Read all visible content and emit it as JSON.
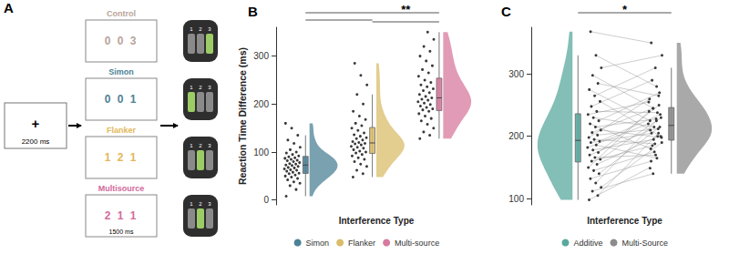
{
  "diagram": {
    "label": "A",
    "fixation": {
      "symbol": "+",
      "duration": "2200 ms"
    },
    "trials": [
      {
        "name": "Control",
        "stimulus": "0 0 3",
        "color": "#b8a399"
      },
      {
        "name": "Simon",
        "stimulus": "0 0 1",
        "color": "#4d8196"
      },
      {
        "name": "Flanker",
        "stimulus": "1 2 1",
        "color": "#e3b75a"
      },
      {
        "name": "Multisource",
        "stimulus": "2 1 1",
        "color": "#d26b9c"
      }
    ],
    "trial_duration": "1500 ms",
    "keypad": [
      "1",
      "2",
      "3"
    ]
  },
  "chart_data": [
    {
      "type": "raincloud",
      "title": "B",
      "ylabel": "Reaction Time Difference (ms)",
      "xlabel": "Interference Type",
      "ylim": [
        -10,
        360
      ],
      "yticks": [
        0,
        100,
        200,
        300
      ],
      "legend": "bottom",
      "tick_labels": "y",
      "annotations": [
        "**"
      ],
      "series": [
        {
          "name": "Simon",
          "color": "#4d8196",
          "values": [
            8,
            22,
            30,
            35,
            38,
            42,
            45,
            48,
            50,
            52,
            55,
            56,
            58,
            60,
            62,
            63,
            65,
            67,
            68,
            70,
            72,
            73,
            75,
            76,
            78,
            80,
            82,
            83,
            85,
            87,
            88,
            90,
            92,
            95,
            98,
            100,
            105,
            110,
            118,
            125,
            135,
            150,
            160
          ]
        },
        {
          "name": "Flanker",
          "color": "#d9bc6a",
          "values": [
            48,
            55,
            62,
            70,
            75,
            80,
            85,
            88,
            92,
            95,
            98,
            100,
            102,
            105,
            108,
            110,
            112,
            115,
            117,
            118,
            120,
            122,
            125,
            128,
            130,
            133,
            136,
            140,
            145,
            150,
            155,
            160,
            168,
            175,
            185,
            200,
            220,
            240,
            260,
            285
          ]
        },
        {
          "name": "Multi-source",
          "color": "#d8799f",
          "values": [
            128,
            135,
            142,
            150,
            158,
            165,
            170,
            175,
            180,
            185,
            188,
            190,
            193,
            196,
            199,
            202,
            205,
            208,
            210,
            213,
            216,
            220,
            224,
            228,
            232,
            236,
            240,
            245,
            250,
            258,
            265,
            272,
            280,
            290,
            300,
            310,
            320,
            335,
            350
          ]
        }
      ]
    },
    {
      "type": "paired_raincloud",
      "title": "C",
      "xlabel": "Interference Type",
      "ylim": [
        90,
        375
      ],
      "yticks": [
        100,
        200,
        300
      ],
      "legend": "bottom",
      "tick_labels": "y",
      "annotations": [
        "*"
      ],
      "series": [
        {
          "name": "Additive",
          "color": "#5aa99d",
          "values": [
            98,
            105,
            112,
            118,
            125,
            132,
            140,
            145,
            150,
            155,
            160,
            163,
            166,
            170,
            174,
            178,
            182,
            186,
            190,
            192,
            195,
            198,
            202,
            206,
            210,
            215,
            220,
            225,
            230,
            235,
            240,
            248,
            256,
            265,
            275,
            285,
            298,
            310,
            330,
            368
          ]
        },
        {
          "name": "Multi-Source",
          "color": "#8c8c8c",
          "values": [
            150,
            205,
            140,
            190,
            225,
            160,
            215,
            175,
            240,
            200,
            185,
            230,
            170,
            210,
            250,
            195,
            220,
            165,
            205,
            235,
            188,
            260,
            212,
            245,
            198,
            228,
            180,
            270,
            215,
            255,
            238,
            290,
            200,
            310,
            225,
            265,
            245,
            330,
            280,
            350
          ]
        }
      ]
    }
  ]
}
